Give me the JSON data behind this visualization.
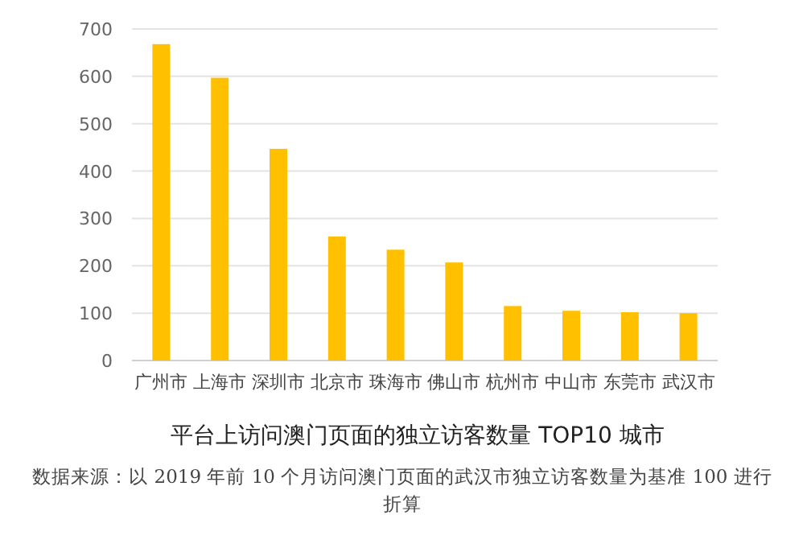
{
  "chart_data": {
    "type": "bar",
    "title": "平台上访问澳门页面的独立访客数量 TOP10 城市",
    "annotations": [
      "数据来源：以 2019 年前 10 个月访问澳门页面的武汉市独立访客数量为基准 100 进行折算"
    ],
    "categories": [
      "广州市",
      "上海市",
      "深圳市",
      "北京市",
      "珠海市",
      "佛山市",
      "杭州市",
      "中山市",
      "东莞市",
      "武汉市"
    ],
    "values": [
      668,
      597,
      447,
      262,
      234,
      207,
      115,
      105,
      102,
      100
    ],
    "color": "#ffc000",
    "ylim": [
      0,
      700
    ],
    "yticks": [
      0,
      100,
      200,
      300,
      400,
      500,
      600,
      700
    ],
    "grid": "y"
  }
}
